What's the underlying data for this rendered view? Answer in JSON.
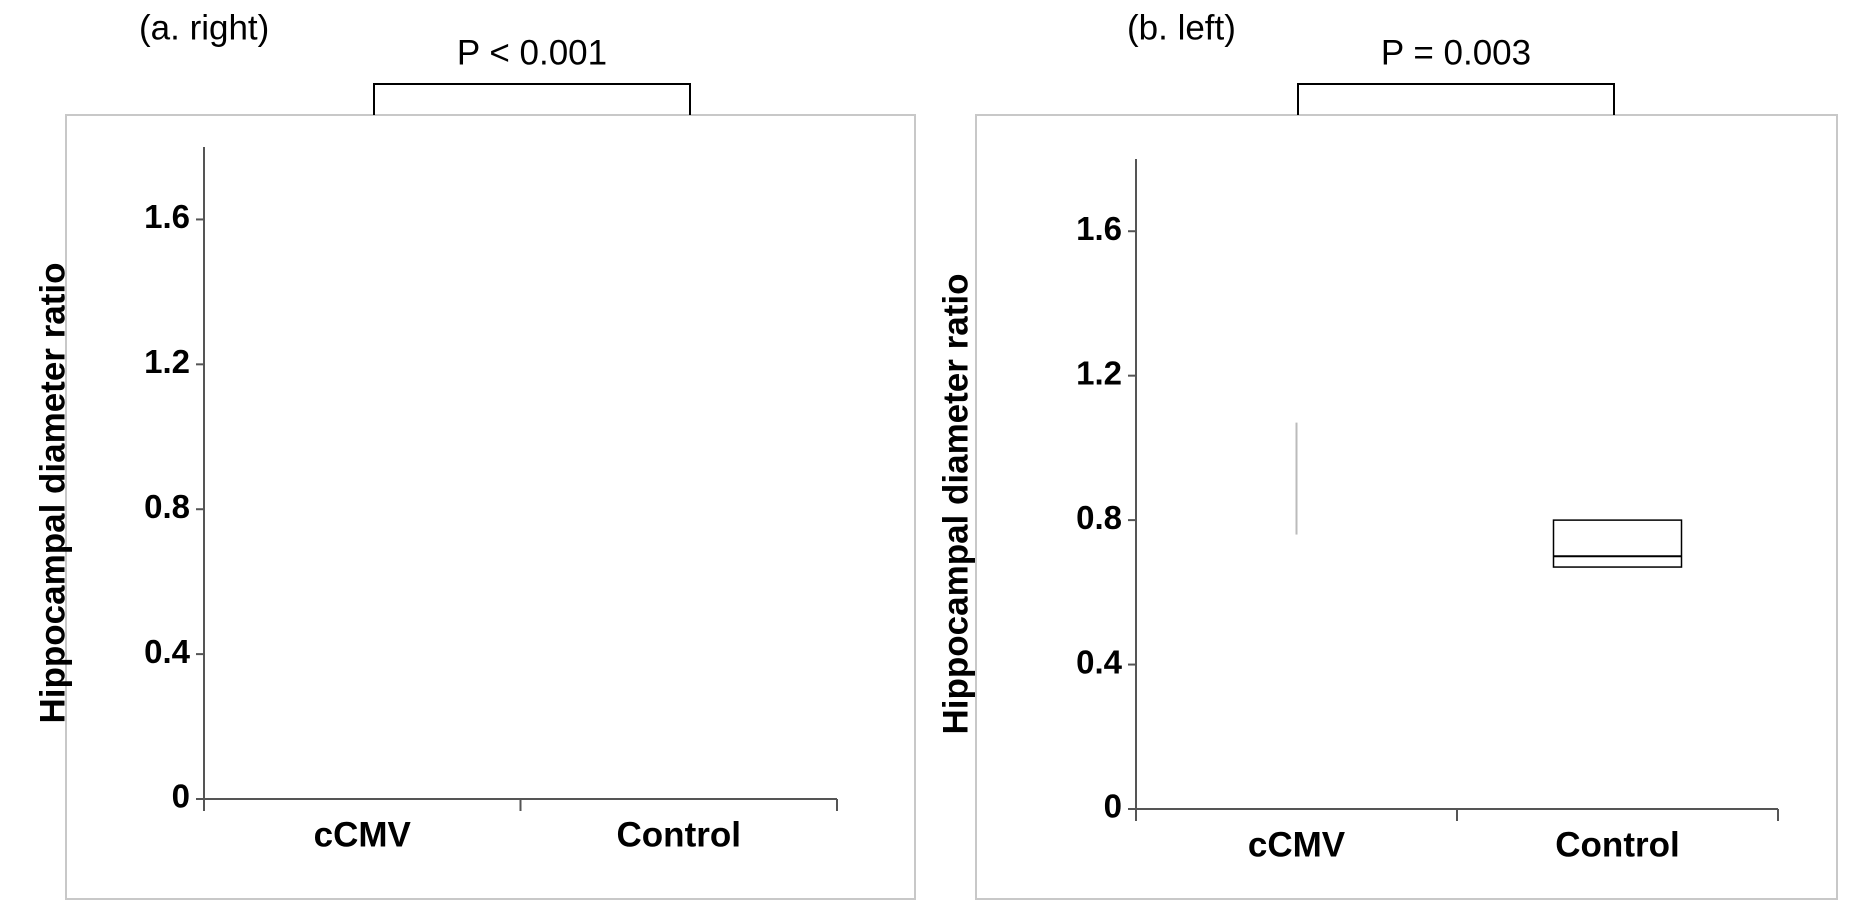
{
  "chart_data": [
    {
      "type": "box",
      "title": "(a. right)",
      "annotation": "P < 0.001",
      "ylabel": "Hippocampal diameter ratio",
      "categories": [
        "cCMV",
        "Control"
      ],
      "ylim": [
        0,
        1.8
      ],
      "yticks": [
        0,
        0.4,
        0.8,
        1.2,
        1.6
      ]
    },
    {
      "type": "box",
      "title": "(b. left)",
      "annotation": "P = 0.003",
      "ylabel": "Hippocampal diameter ratio",
      "categories": [
        "cCMV",
        "Control"
      ],
      "ylim": [
        0,
        1.8
      ],
      "yticks": [
        0,
        0.4,
        0.8,
        1.2,
        1.6
      ],
      "whisker_low": [
        0.76,
        null
      ],
      "whisker_high": [
        1.07,
        null
      ],
      "q1": [
        null,
        0.67
      ],
      "median": [
        null,
        0.7
      ],
      "q3": [
        null,
        0.8
      ]
    }
  ]
}
